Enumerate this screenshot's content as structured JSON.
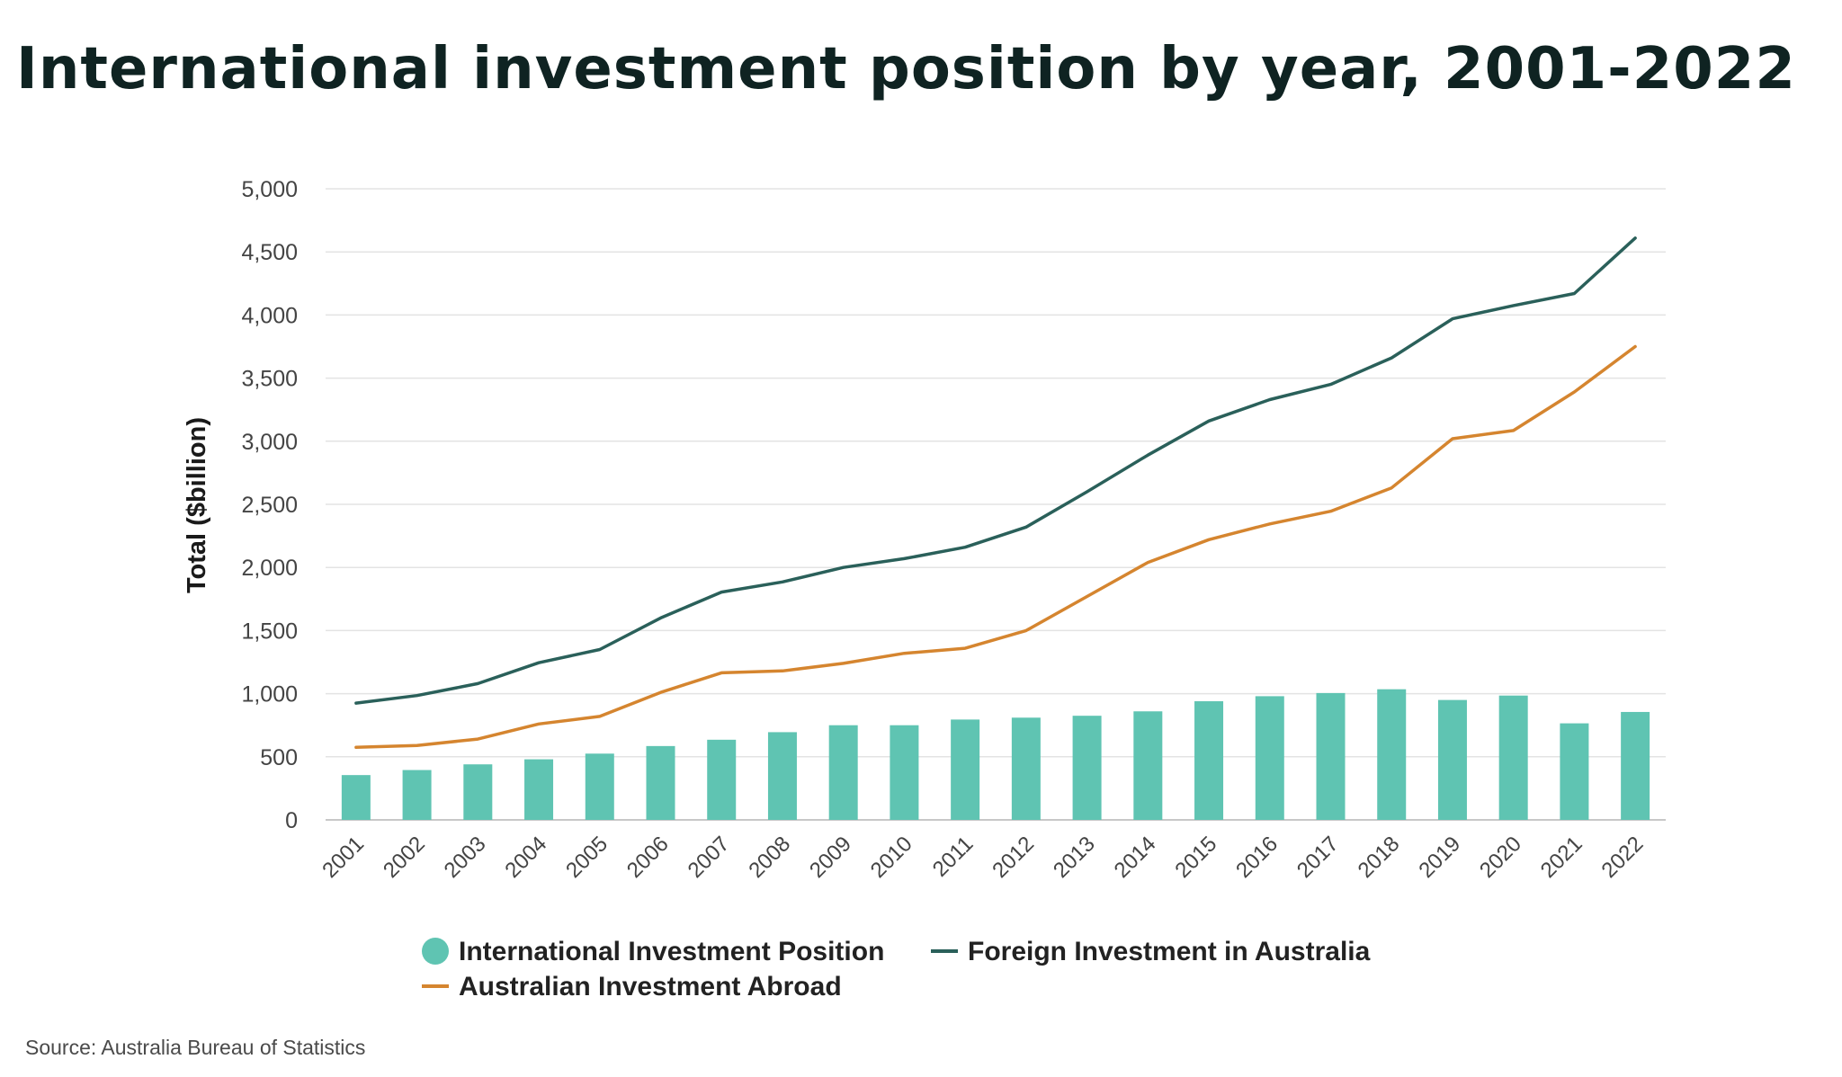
{
  "chart_data": {
    "type": "bar",
    "title": "International investment position by year, 2001-2022",
    "ylabel": "Total ($billion)",
    "xlabel": "",
    "ylim": [
      0,
      5000
    ],
    "yticks": [
      0,
      500,
      1000,
      1500,
      2000,
      2500,
      3000,
      3500,
      4000,
      4500,
      5000
    ],
    "ytick_labels": [
      "0",
      "500",
      "1,000",
      "1,500",
      "2,000",
      "2,500",
      "3,000",
      "3,500",
      "4,000",
      "4,500",
      "5,000"
    ],
    "grid": true,
    "legend_position": "bottom-center",
    "categories": [
      "2001",
      "2002",
      "2003",
      "2004",
      "2005",
      "2006",
      "2007",
      "2008",
      "2009",
      "2010",
      "2011",
      "2012",
      "2013",
      "2014",
      "2015",
      "2016",
      "2017",
      "2018",
      "2019",
      "2020",
      "2021",
      "2022"
    ],
    "series": [
      {
        "name": "International Investment Position",
        "kind": "bar",
        "color": "#5fc4b2",
        "values": [
          355,
          395,
          440,
          480,
          525,
          585,
          635,
          695,
          750,
          750,
          795,
          810,
          825,
          860,
          940,
          980,
          1005,
          1035,
          950,
          985,
          765,
          855
        ]
      },
      {
        "name": "Foreign Investment in Australia",
        "kind": "line",
        "color": "#2a605a",
        "values": [
          925,
          985,
          1080,
          1245,
          1350,
          1600,
          1805,
          1885,
          2000,
          2070,
          2160,
          2320,
          2600,
          2890,
          3160,
          3330,
          3450,
          3660,
          3970,
          4075,
          4170,
          4610
        ]
      },
      {
        "name": "Australian Investment Abroad",
        "kind": "line",
        "color": "#d5852f",
        "values": [
          575,
          590,
          640,
          760,
          820,
          1010,
          1165,
          1180,
          1240,
          1320,
          1360,
          1500,
          1770,
          2040,
          2220,
          2345,
          2445,
          2630,
          3020,
          3085,
          3390,
          3750
        ]
      }
    ]
  },
  "source": "Source: Australia Bureau of Statistics"
}
